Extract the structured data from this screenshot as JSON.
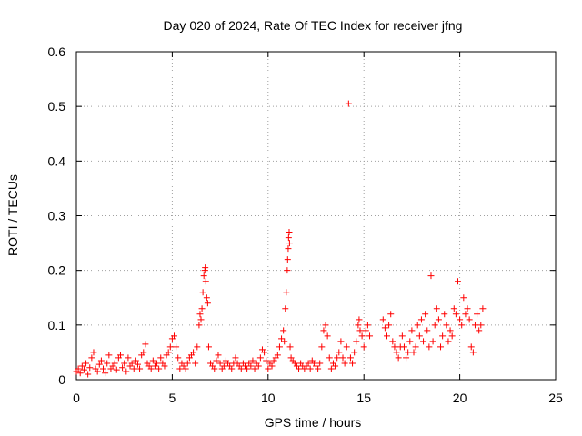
{
  "chart_data": {
    "type": "scatter",
    "title": "Day 020 of 2024, Rate Of TEC Index for receiver jfng",
    "xlabel": "GPS time / hours",
    "ylabel": "ROTI / TECUs",
    "xlim": [
      0,
      25
    ],
    "ylim": [
      0,
      0.6
    ],
    "x_ticks": [
      "0",
      "5",
      "10",
      "15",
      "20",
      "25"
    ],
    "y_ticks": [
      "0",
      "0.1",
      "0.2",
      "0.3",
      "0.4",
      "0.5",
      "0.6"
    ],
    "grid": true,
    "marker": "+",
    "color": "#ff0000",
    "series": [
      {
        "name": "ROTI",
        "points": [
          [
            0.0,
            0.015
          ],
          [
            0.1,
            0.02
          ],
          [
            0.2,
            0.012
          ],
          [
            0.3,
            0.025
          ],
          [
            0.4,
            0.018
          ],
          [
            0.5,
            0.03
          ],
          [
            0.6,
            0.01
          ],
          [
            0.7,
            0.022
          ],
          [
            0.8,
            0.04
          ],
          [
            0.9,
            0.05
          ],
          [
            1.0,
            0.02
          ],
          [
            1.1,
            0.015
          ],
          [
            1.2,
            0.028
          ],
          [
            1.3,
            0.035
          ],
          [
            1.4,
            0.02
          ],
          [
            1.5,
            0.012
          ],
          [
            1.6,
            0.03
          ],
          [
            1.7,
            0.045
          ],
          [
            1.8,
            0.02
          ],
          [
            1.9,
            0.025
          ],
          [
            2.0,
            0.03
          ],
          [
            2.1,
            0.018
          ],
          [
            2.2,
            0.04
          ],
          [
            2.3,
            0.045
          ],
          [
            2.4,
            0.022
          ],
          [
            2.5,
            0.03
          ],
          [
            2.6,
            0.015
          ],
          [
            2.7,
            0.04
          ],
          [
            2.8,
            0.025
          ],
          [
            2.9,
            0.03
          ],
          [
            3.0,
            0.02
          ],
          [
            3.1,
            0.035
          ],
          [
            3.2,
            0.028
          ],
          [
            3.3,
            0.02
          ],
          [
            3.4,
            0.045
          ],
          [
            3.5,
            0.05
          ],
          [
            3.6,
            0.065
          ],
          [
            3.7,
            0.03
          ],
          [
            3.8,
            0.025
          ],
          [
            3.9,
            0.02
          ],
          [
            4.0,
            0.035
          ],
          [
            4.1,
            0.025
          ],
          [
            4.2,
            0.03
          ],
          [
            4.3,
            0.02
          ],
          [
            4.4,
            0.04
          ],
          [
            4.5,
            0.03
          ],
          [
            4.6,
            0.025
          ],
          [
            4.7,
            0.045
          ],
          [
            4.8,
            0.05
          ],
          [
            4.9,
            0.06
          ],
          [
            5.0,
            0.075
          ],
          [
            5.1,
            0.08
          ],
          [
            5.2,
            0.06
          ],
          [
            5.3,
            0.04
          ],
          [
            5.4,
            0.02
          ],
          [
            5.5,
            0.03
          ],
          [
            5.6,
            0.025
          ],
          [
            5.7,
            0.02
          ],
          [
            5.8,
            0.03
          ],
          [
            5.9,
            0.04
          ],
          [
            6.0,
            0.045
          ],
          [
            6.1,
            0.05
          ],
          [
            6.2,
            0.03
          ],
          [
            6.3,
            0.06
          ],
          [
            6.4,
            0.1
          ],
          [
            6.45,
            0.12
          ],
          [
            6.5,
            0.11
          ],
          [
            6.55,
            0.13
          ],
          [
            6.6,
            0.16
          ],
          [
            6.65,
            0.19
          ],
          [
            6.7,
            0.2
          ],
          [
            6.72,
            0.205
          ],
          [
            6.75,
            0.18
          ],
          [
            6.8,
            0.15
          ],
          [
            6.85,
            0.14
          ],
          [
            6.9,
            0.06
          ],
          [
            7.0,
            0.03
          ],
          [
            7.1,
            0.025
          ],
          [
            7.2,
            0.02
          ],
          [
            7.3,
            0.035
          ],
          [
            7.4,
            0.045
          ],
          [
            7.5,
            0.03
          ],
          [
            7.6,
            0.02
          ],
          [
            7.7,
            0.025
          ],
          [
            7.8,
            0.035
          ],
          [
            7.9,
            0.03
          ],
          [
            8.0,
            0.025
          ],
          [
            8.1,
            0.02
          ],
          [
            8.2,
            0.03
          ],
          [
            8.3,
            0.04
          ],
          [
            8.4,
            0.03
          ],
          [
            8.5,
            0.025
          ],
          [
            8.6,
            0.02
          ],
          [
            8.7,
            0.03
          ],
          [
            8.8,
            0.025
          ],
          [
            8.9,
            0.02
          ],
          [
            9.0,
            0.03
          ],
          [
            9.1,
            0.025
          ],
          [
            9.2,
            0.035
          ],
          [
            9.3,
            0.02
          ],
          [
            9.4,
            0.03
          ],
          [
            9.5,
            0.025
          ],
          [
            9.6,
            0.04
          ],
          [
            9.7,
            0.055
          ],
          [
            9.8,
            0.05
          ],
          [
            9.9,
            0.035
          ],
          [
            10.0,
            0.02
          ],
          [
            10.1,
            0.03
          ],
          [
            10.2,
            0.025
          ],
          [
            10.3,
            0.035
          ],
          [
            10.4,
            0.04
          ],
          [
            10.5,
            0.045
          ],
          [
            10.6,
            0.06
          ],
          [
            10.7,
            0.075
          ],
          [
            10.8,
            0.09
          ],
          [
            10.85,
            0.07
          ],
          [
            10.9,
            0.13
          ],
          [
            10.95,
            0.16
          ],
          [
            11.0,
            0.2
          ],
          [
            11.02,
            0.22
          ],
          [
            11.05,
            0.24
          ],
          [
            11.07,
            0.26
          ],
          [
            11.1,
            0.27
          ],
          [
            11.12,
            0.25
          ],
          [
            11.15,
            0.06
          ],
          [
            11.2,
            0.04
          ],
          [
            11.3,
            0.035
          ],
          [
            11.4,
            0.03
          ],
          [
            11.5,
            0.025
          ],
          [
            11.6,
            0.02
          ],
          [
            11.7,
            0.03
          ],
          [
            11.8,
            0.025
          ],
          [
            11.9,
            0.02
          ],
          [
            12.0,
            0.025
          ],
          [
            12.1,
            0.03
          ],
          [
            12.2,
            0.02
          ],
          [
            12.3,
            0.035
          ],
          [
            12.4,
            0.03
          ],
          [
            12.5,
            0.025
          ],
          [
            12.6,
            0.02
          ],
          [
            12.7,
            0.03
          ],
          [
            12.8,
            0.06
          ],
          [
            12.9,
            0.09
          ],
          [
            13.0,
            0.1
          ],
          [
            13.1,
            0.08
          ],
          [
            13.2,
            0.04
          ],
          [
            13.3,
            0.02
          ],
          [
            13.4,
            0.03
          ],
          [
            13.5,
            0.025
          ],
          [
            13.6,
            0.04
          ],
          [
            13.7,
            0.05
          ],
          [
            13.8,
            0.07
          ],
          [
            13.9,
            0.04
          ],
          [
            14.0,
            0.03
          ],
          [
            14.1,
            0.06
          ],
          [
            14.2,
            0.505
          ],
          [
            14.3,
            0.04
          ],
          [
            14.4,
            0.03
          ],
          [
            14.5,
            0.05
          ],
          [
            14.6,
            0.07
          ],
          [
            14.7,
            0.1
          ],
          [
            14.75,
            0.11
          ],
          [
            14.8,
            0.09
          ],
          [
            14.9,
            0.08
          ],
          [
            15.0,
            0.06
          ],
          [
            15.1,
            0.09
          ],
          [
            15.2,
            0.1
          ],
          [
            15.3,
            0.08
          ],
          [
            16.0,
            0.11
          ],
          [
            16.1,
            0.095
          ],
          [
            16.2,
            0.08
          ],
          [
            16.3,
            0.1
          ],
          [
            16.4,
            0.12
          ],
          [
            16.5,
            0.07
          ],
          [
            16.6,
            0.06
          ],
          [
            16.7,
            0.05
          ],
          [
            16.8,
            0.04
          ],
          [
            16.9,
            0.06
          ],
          [
            17.0,
            0.08
          ],
          [
            17.1,
            0.06
          ],
          [
            17.2,
            0.04
          ],
          [
            17.3,
            0.05
          ],
          [
            17.4,
            0.07
          ],
          [
            17.5,
            0.09
          ],
          [
            17.6,
            0.05
          ],
          [
            17.7,
            0.06
          ],
          [
            17.8,
            0.1
          ],
          [
            17.9,
            0.08
          ],
          [
            18.0,
            0.11
          ],
          [
            18.1,
            0.07
          ],
          [
            18.2,
            0.12
          ],
          [
            18.3,
            0.09
          ],
          [
            18.4,
            0.06
          ],
          [
            18.5,
            0.19
          ],
          [
            18.6,
            0.07
          ],
          [
            18.7,
            0.1
          ],
          [
            18.8,
            0.13
          ],
          [
            18.9,
            0.11
          ],
          [
            19.0,
            0.06
          ],
          [
            19.1,
            0.08
          ],
          [
            19.2,
            0.12
          ],
          [
            19.3,
            0.1
          ],
          [
            19.4,
            0.07
          ],
          [
            19.5,
            0.09
          ],
          [
            19.6,
            0.08
          ],
          [
            19.7,
            0.13
          ],
          [
            19.8,
            0.12
          ],
          [
            19.9,
            0.18
          ],
          [
            20.0,
            0.11
          ],
          [
            20.1,
            0.1
          ],
          [
            20.2,
            0.15
          ],
          [
            20.3,
            0.12
          ],
          [
            20.4,
            0.13
          ],
          [
            20.5,
            0.11
          ],
          [
            20.6,
            0.06
          ],
          [
            20.7,
            0.05
          ],
          [
            20.8,
            0.1
          ],
          [
            20.9,
            0.12
          ],
          [
            21.0,
            0.09
          ],
          [
            21.1,
            0.1
          ],
          [
            21.2,
            0.13
          ]
        ]
      }
    ]
  }
}
